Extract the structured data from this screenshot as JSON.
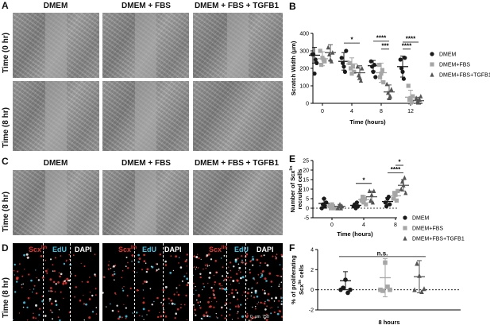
{
  "panels": {
    "a": {
      "label": "A",
      "columns": [
        "DMEM",
        "DMEM + FBS",
        "DMEM + FBS + TGFB1"
      ],
      "rows": [
        "Time (0 hr)",
        "Time (8 hr)"
      ]
    },
    "c": {
      "label": "C",
      "columns": [
        "DMEM",
        "DMEM + FBS",
        "DMEM + FBS + TGFB1"
      ],
      "row": "Time (8 hr)"
    },
    "d": {
      "label": "D",
      "row": "Time (8 hr)",
      "channel_scx": "Scx",
      "channel_scx_sup": "lin",
      "channel_edu": "EdU",
      "channel_dapi": "DAPI",
      "scale_zero": "0",
      "scale_unit": "μm",
      "scale_value": "750"
    }
  },
  "colors": {
    "dmem": "#1a1a1a",
    "fbs": "#a6a6a6",
    "tgfb1": "#555555",
    "scx_red": "#e8332a",
    "edu_cyan": "#39c6e6"
  },
  "chart_data": [
    {
      "panel": "B",
      "type": "scatter",
      "ylabel": "Scratch Width (μm)",
      "xlabel": "Time (hours)",
      "categories": [
        "0",
        "4",
        "8",
        "12"
      ],
      "ylim": [
        0,
        400
      ],
      "yticks": [
        "0",
        "100",
        "200",
        "300",
        "400"
      ],
      "legend": [
        "DMEM",
        "DMEM+FBS",
        "DMEM+FBS+TGFB1"
      ],
      "series": [
        {
          "name": "DMEM",
          "marker": "circle",
          "points": [
            [
              280,
              280,
              170,
              250,
              230
            ],
            [
              260,
              230,
              210,
              180,
              300
            ],
            [
              240,
              210,
              180,
              220,
              150
            ],
            [
              250,
              200,
              180,
              140,
              260
            ]
          ],
          "mean": [
            275,
            240,
            215,
            210
          ],
          "err": [
            45,
            50,
            30,
            60
          ]
        },
        {
          "name": "DMEM+FBS",
          "marker": "square",
          "points": [
            [
              300,
              220,
              260,
              250,
              240
            ],
            [
              230,
              200,
              170,
              210,
              180
            ],
            [
              220,
              150,
              170,
              190,
              120
            ],
            [
              100,
              20,
              30,
              10,
              40
            ]
          ],
          "mean": [
            255,
            225,
            175,
            35
          ],
          "err": [
            40,
            35,
            55,
            40
          ]
        },
        {
          "name": "DMEM+FBS+TGFB1",
          "marker": "triangle",
          "points": [
            [
              320,
              280,
              250,
              240,
              290
            ],
            [
              210,
              160,
              150,
              130,
              200
            ],
            [
              110,
              60,
              30,
              40,
              80
            ],
            [
              30,
              10,
              5,
              20,
              40
            ]
          ],
          "mean": [
            290,
            175,
            65,
            15
          ],
          "err": [
            45,
            40,
            40,
            20
          ]
        }
      ],
      "annotations": [
        {
          "text": "*"
        },
        {
          "text": "****"
        },
        {
          "text": "***"
        },
        {
          "text": "****"
        },
        {
          "text": "****"
        }
      ]
    },
    {
      "panel": "E",
      "type": "scatter",
      "ylabel_main": "Number of Scx",
      "ylabel_sup": "lin",
      "ylabel_second": "recruited cells",
      "xlabel": "Time (hours)",
      "categories": [
        "0",
        "4",
        "8"
      ],
      "ylim": [
        -5,
        25
      ],
      "yticks": [
        "-5",
        "0",
        "5",
        "10",
        "15",
        "20",
        "25"
      ],
      "legend": [
        "DMEM",
        "DMEM+FBS",
        "DMEM+FBS+TGFB1"
      ],
      "series": [
        {
          "name": "DMEM",
          "marker": "circle",
          "points": [
            [
              0,
              2,
              5,
              1,
              3
            ],
            [
              1,
              2,
              0,
              3,
              1
            ],
            [
              3,
              1,
              5,
              6,
              2
            ]
          ],
          "mean": [
            2.5,
            1.5,
            3.5
          ],
          "err": [
            2.5,
            1.0,
            2.0
          ]
        },
        {
          "name": "DMEM+FBS",
          "marker": "square",
          "points": [
            [
              1,
              0,
              2,
              1,
              0
            ],
            [
              4,
              6,
              3,
              5,
              2
            ],
            [
              5,
              8,
              7,
              4,
              9
            ]
          ],
          "mean": [
            1,
            4.5,
            6.5
          ],
          "err": [
            1.0,
            2.0,
            2.0
          ]
        },
        {
          "name": "DMEM+FBS+TGFB1",
          "marker": "triangle",
          "points": [
            [
              0,
              1,
              2,
              0,
              1
            ],
            [
              9,
              4,
              7,
              3,
              9
            ],
            [
              10,
              14,
              12,
              16,
              8
            ]
          ],
          "mean": [
            1,
            6,
            12
          ],
          "err": [
            1.0,
            3.0,
            3.0
          ]
        }
      ],
      "annotations": [
        {
          "text": "*"
        },
        {
          "text": "****"
        },
        {
          "text": "*"
        }
      ]
    },
    {
      "panel": "F",
      "type": "scatter",
      "ylabel_main": "% of proliferating",
      "ylabel_second": "Scx",
      "ylabel_sup": "lin",
      "ylabel_tail": "cells",
      "xlabel": "8 hours",
      "ylim": [
        -2,
        4
      ],
      "yticks": [
        "-2",
        "0",
        "2",
        "4"
      ],
      "series": [
        {
          "name": "DMEM",
          "marker": "circle",
          "points": [
            0,
            0.2,
            1.0,
            -0.3,
            0
          ],
          "mean": 0.9,
          "err": 0.9
        },
        {
          "name": "DMEM+FBS",
          "marker": "square",
          "points": [
            0,
            -0.1,
            2.7,
            0.3,
            0
          ],
          "mean": 1.2,
          "err": 1.9
        },
        {
          "name": "DMEM+FBS+TGFB1",
          "marker": "triangle",
          "points": [
            0,
            2.6,
            1.4,
            -0.2,
            0.1
          ],
          "mean": 1.3,
          "err": 1.6
        }
      ],
      "annotations": [
        {
          "text": "n.s."
        }
      ]
    }
  ]
}
